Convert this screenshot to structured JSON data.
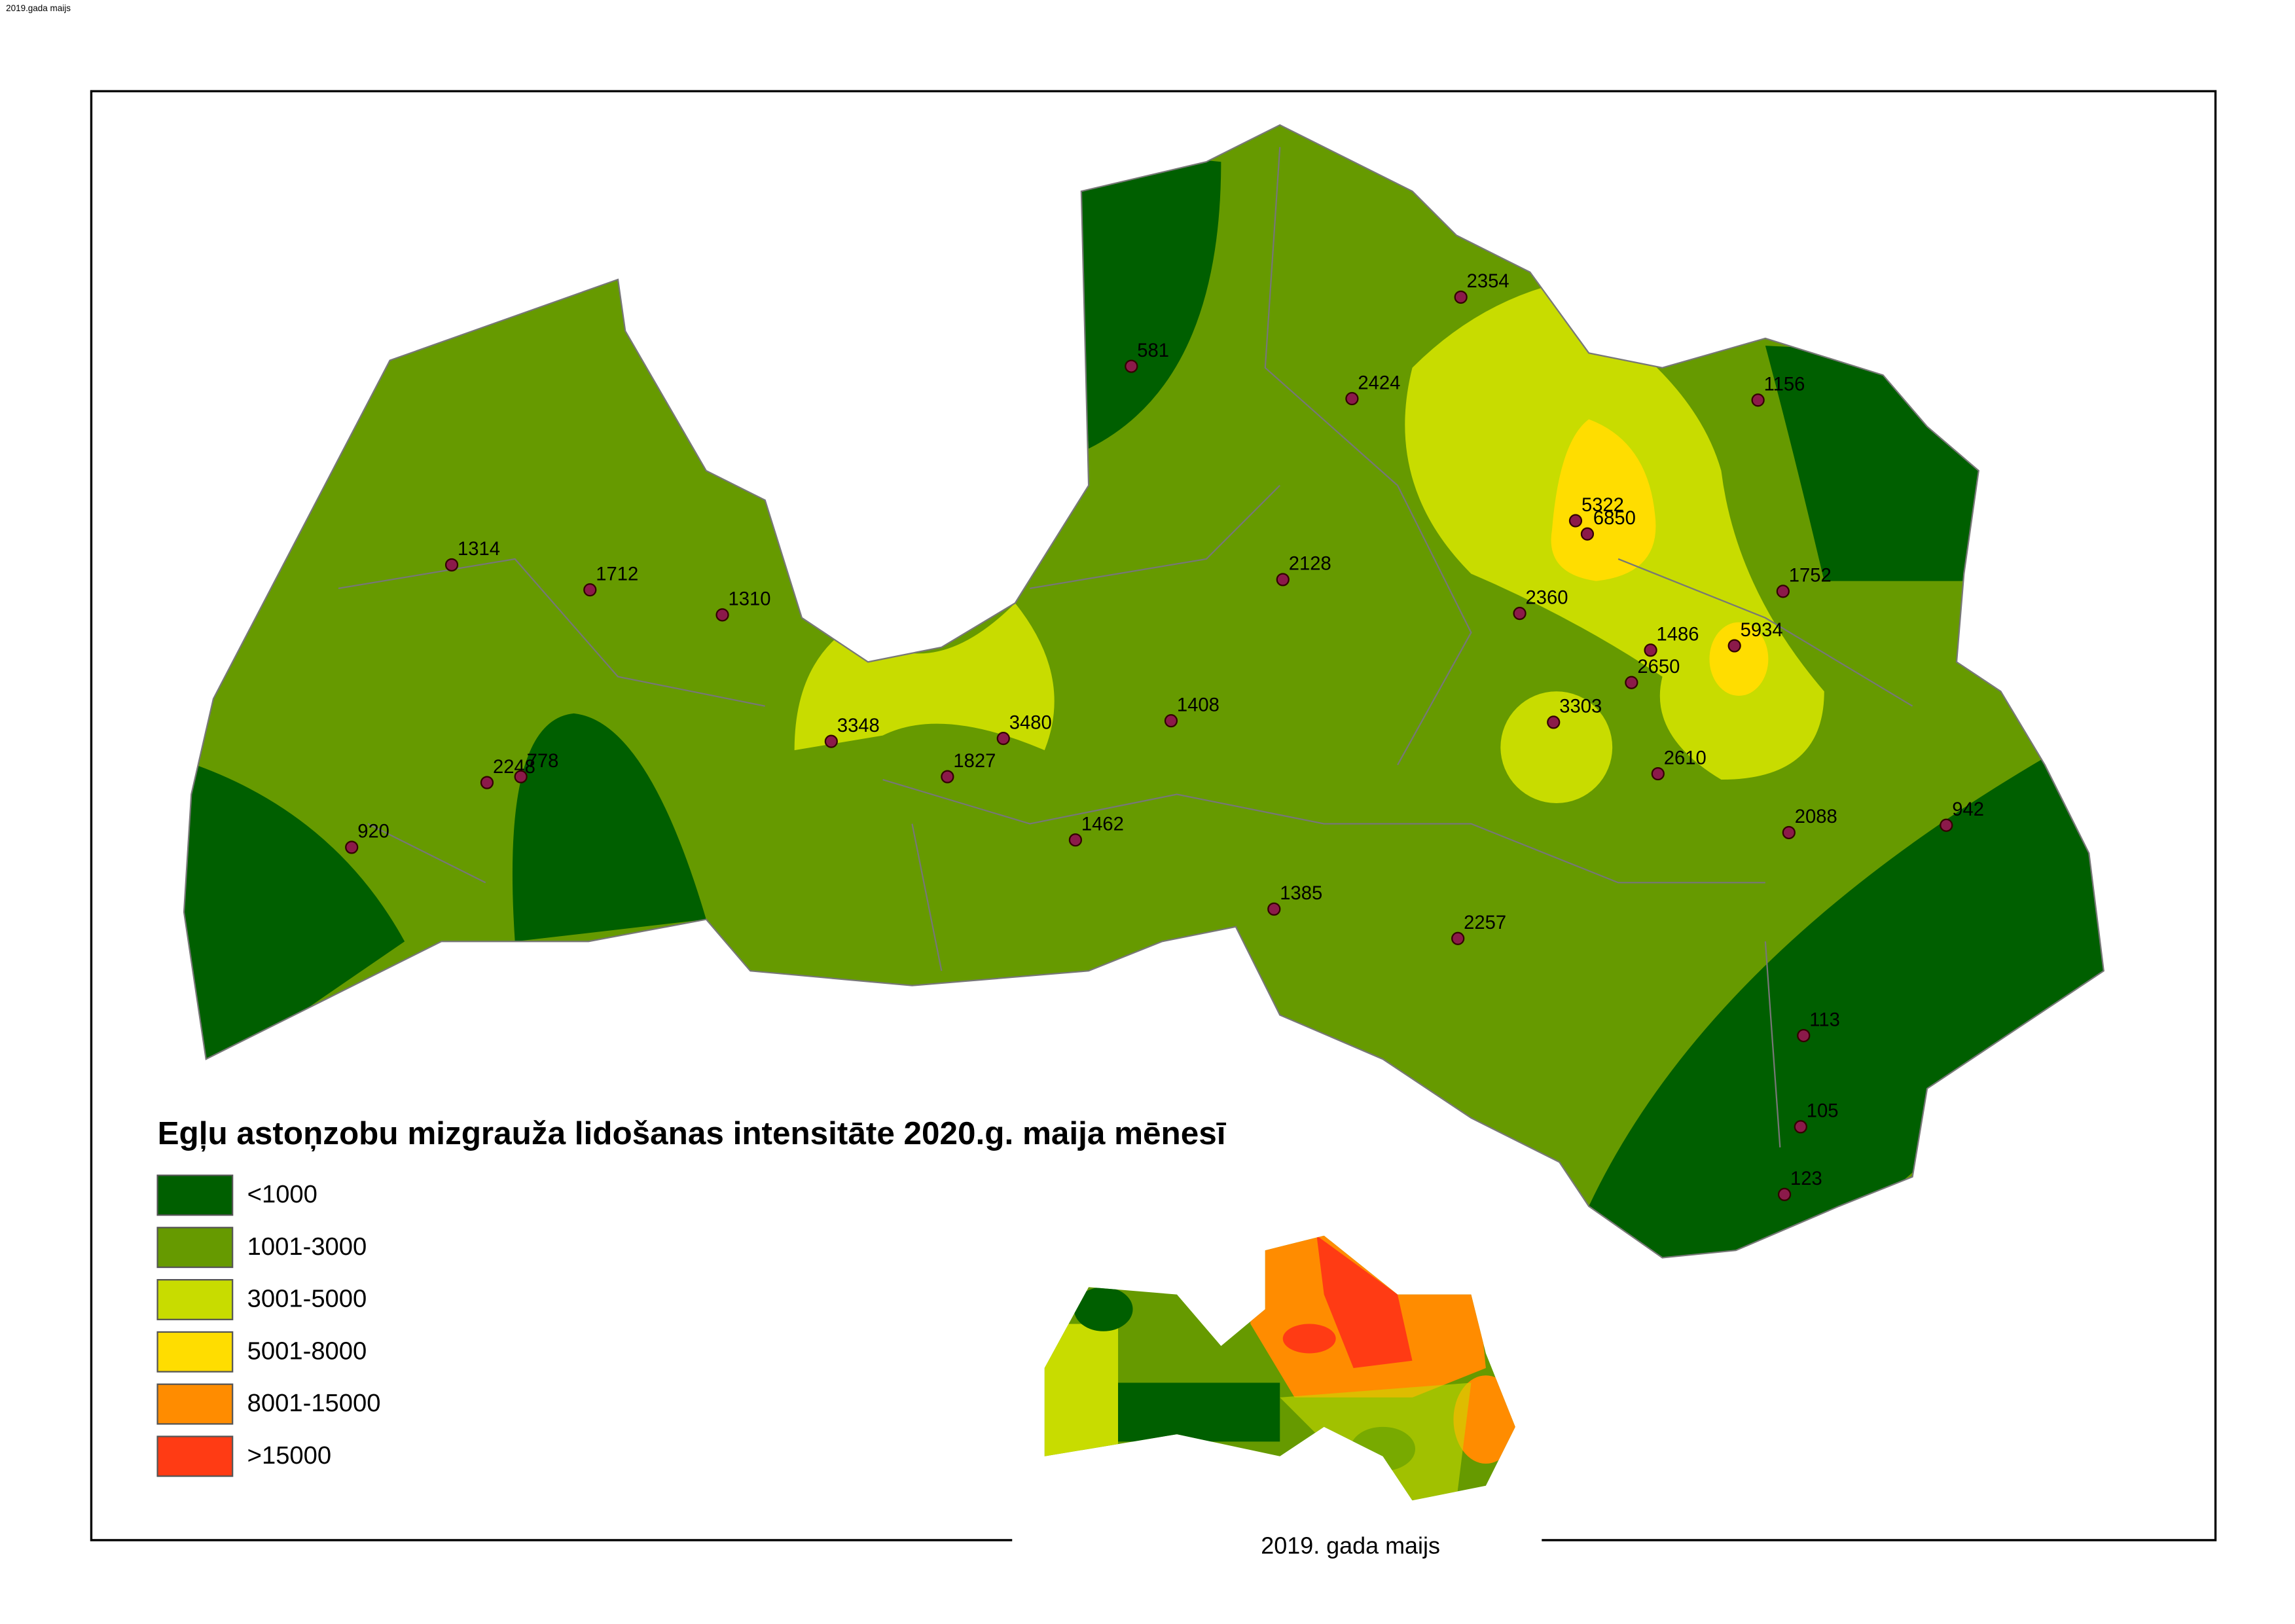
{
  "corner_label": "2019.gada maijs",
  "title": "Egļu astoņzobu mizgrauža lidošanas intensitāte 2020.g. maija mēnesī",
  "legend": [
    {
      "label": "<1000",
      "color": "#005f00"
    },
    {
      "label": "1001-3000",
      "color": "#669a00"
    },
    {
      "label": "3001-5000",
      "color": "#c8dc00"
    },
    {
      "label": "5001-8000",
      "color": "#ffdd00"
    },
    {
      "label": "8001-15000",
      "color": "#ff8c00"
    },
    {
      "label": ">15000",
      "color": "#ff3b14"
    }
  ],
  "points": [
    581,
    2354,
    2424,
    1156,
    5322,
    6850,
    1314,
    1712,
    1310,
    2128,
    2360,
    1752,
    1486,
    5934,
    2650,
    3303,
    3348,
    3480,
    1408,
    1827,
    2610,
    2248,
    778,
    920,
    1462,
    2088,
    942,
    1385,
    2257,
    113,
    105,
    123
  ],
  "inset_caption": "2019. gada maijs"
}
